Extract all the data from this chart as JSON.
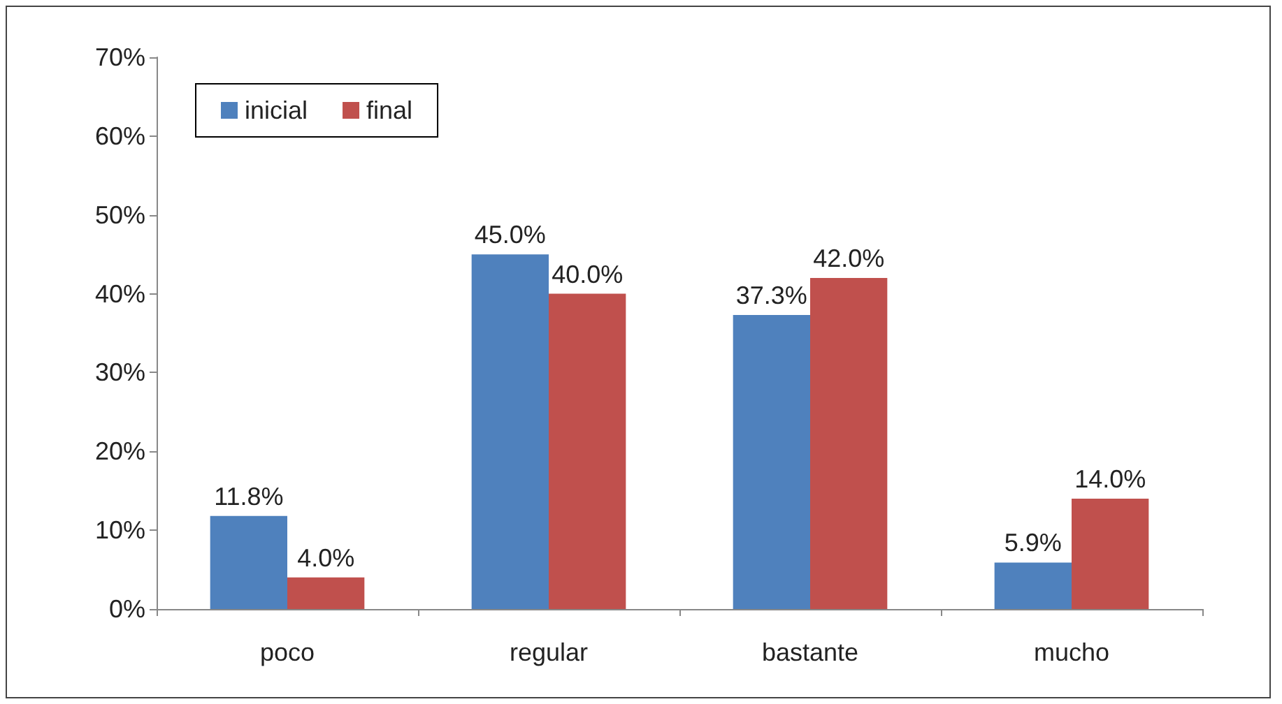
{
  "chart_data": {
    "type": "bar",
    "categories": [
      "poco",
      "regular",
      "bastante",
      "mucho"
    ],
    "series": [
      {
        "name": "inicial",
        "color": "#4f81bd",
        "values": [
          11.8,
          45.0,
          37.3,
          5.9
        ],
        "value_labels": [
          "11.8%",
          "45.0%",
          "37.3%",
          "5.9%"
        ]
      },
      {
        "name": "final",
        "color": "#c0504d",
        "values": [
          4.0,
          40.0,
          42.0,
          14.0
        ],
        "value_labels": [
          "4.0%",
          "40.0%",
          "42.0%",
          "14.0%"
        ]
      }
    ],
    "ylim": [
      0,
      70
    ],
    "yticks": [
      {
        "value": 0,
        "label": "0%"
      },
      {
        "value": 10,
        "label": "10%"
      },
      {
        "value": 20,
        "label": "20%"
      },
      {
        "value": 30,
        "label": "30%"
      },
      {
        "value": 40,
        "label": "40%"
      },
      {
        "value": 50,
        "label": "50%"
      },
      {
        "value": 60,
        "label": "60%"
      },
      {
        "value": 70,
        "label": "70%"
      }
    ],
    "grid": false,
    "legend": "top left"
  }
}
